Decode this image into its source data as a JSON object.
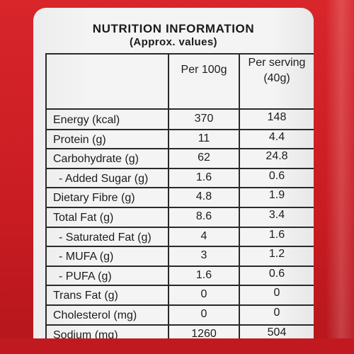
{
  "panel": {
    "title": "NUTRITION INFORMATION",
    "subtitle": "(Approx. values)"
  },
  "columns": {
    "per_100g": "Per 100g",
    "per_serving_line1": "Per serving",
    "per_serving_line2": "(40g)"
  },
  "rows": [
    {
      "name": "Energy (kcal)",
      "per_100g": "370",
      "per_serving": "148"
    },
    {
      "name": "Protein (g)",
      "per_100g": "11",
      "per_serving": "4.4"
    },
    {
      "name": "Carbohydrate (g)",
      "per_100g": "62",
      "per_serving": "24.8"
    },
    {
      "name": "- Added Sugar (g)",
      "per_100g": "1.6",
      "per_serving": "0.6"
    },
    {
      "name": "Dietary Fibre (g)",
      "per_100g": "4.8",
      "per_serving": "1.9"
    },
    {
      "name": "Total Fat (g)",
      "per_100g": "8.6",
      "per_serving": "3.4"
    },
    {
      "name": "- Saturated Fat (g)",
      "per_100g": "4",
      "per_serving": "1.6"
    },
    {
      "name": "- MUFA (g)",
      "per_100g": "3",
      "per_serving": "1.2"
    },
    {
      "name": "- PUFA (g)",
      "per_100g": "1.6",
      "per_serving": "0.6"
    },
    {
      "name": "Trans Fat (g)",
      "per_100g": "0",
      "per_serving": "0"
    },
    {
      "name": "Cholesterol (mg)",
      "per_100g": "0",
      "per_serving": "0"
    },
    {
      "name": "Sodium (mg)",
      "per_100g": "1260",
      "per_serving": "504"
    }
  ],
  "colors": {
    "package": "#d8262b",
    "label": "#f4f4f4",
    "text": "#1c1c1c"
  }
}
